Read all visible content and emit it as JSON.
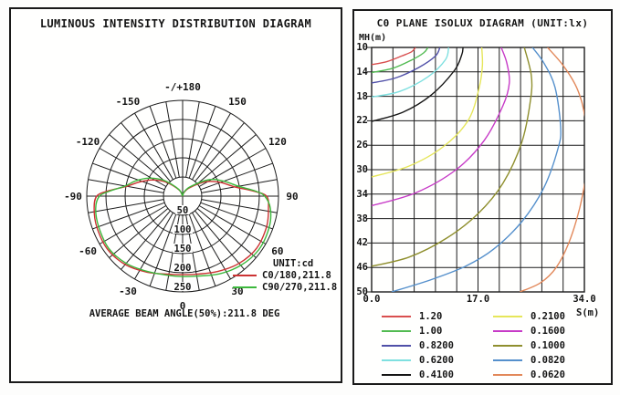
{
  "left_panel": {
    "title": "LUMINOUS INTENSITY DISTRIBUTION DIAGRAM",
    "legend_unit": "UNIT:cd",
    "footer": "AVERAGE BEAM ANGLE(50%):211.8 DEG"
  },
  "right_panel": {
    "title": "C0 PLANE ISOLUX DIAGRAM (UNIT:lx)",
    "y_axis_label": "MH(m)",
    "x_axis_label": "S(m)"
  },
  "chart_data": [
    {
      "type": "line",
      "variant": "polar-intensity",
      "title": "LUMINOUS INTENSITY DISTRIBUTION DIAGRAM",
      "unit": "cd",
      "beam_angle_deg": 211.8,
      "radial_ticks": [
        50,
        100,
        150,
        200,
        250
      ],
      "r_max": 250,
      "angle_labels": [
        {
          "text": "-/+180",
          "deg": 180
        },
        {
          "text": "-150",
          "deg": -150
        },
        {
          "text": "150",
          "deg": 150
        },
        {
          "text": "-120",
          "deg": -120
        },
        {
          "text": "120",
          "deg": 120
        },
        {
          "text": "-90",
          "deg": -90
        },
        {
          "text": "90",
          "deg": 90
        },
        {
          "text": "-60",
          "deg": -60
        },
        {
          "text": "60",
          "deg": 60
        },
        {
          "text": "-30",
          "deg": -30
        },
        {
          "text": "30",
          "deg": 30
        },
        {
          "text": "0",
          "deg": 0
        }
      ],
      "series": [
        {
          "name": "C0/180,211.8",
          "color": "#cc3333",
          "points": [
            [
              -180,
              0
            ],
            [
              -150,
              19
            ],
            [
              -130,
              57
            ],
            [
              -118,
              90
            ],
            [
              -108,
              119
            ],
            [
              -100,
              148
            ],
            [
              -94,
              195
            ],
            [
              -90,
              224
            ],
            [
              -82,
              233
            ],
            [
              -70,
              238
            ],
            [
              -55,
              240
            ],
            [
              -40,
              233
            ],
            [
              -25,
              219
            ],
            [
              -10,
              207
            ],
            [
              0,
              205
            ],
            [
              10,
              207
            ],
            [
              25,
              217
            ],
            [
              40,
              229
            ],
            [
              55,
              236
            ],
            [
              70,
              233
            ],
            [
              82,
              226
            ],
            [
              90,
              219
            ],
            [
              94,
              186
            ],
            [
              100,
              138
            ],
            [
              110,
              105
            ],
            [
              122,
              71
            ],
            [
              140,
              29
            ],
            [
              160,
              10
            ],
            [
              180,
              0
            ]
          ]
        },
        {
          "name": "C90/270,211.8",
          "color": "#3cb83c",
          "points": [
            [
              -180,
              0
            ],
            [
              -150,
              21
            ],
            [
              -130,
              64
            ],
            [
              -118,
              100
            ],
            [
              -108,
              129
            ],
            [
              -100,
              152
            ],
            [
              -94,
              190
            ],
            [
              -90,
              217
            ],
            [
              -82,
              229
            ],
            [
              -70,
              233
            ],
            [
              -55,
              236
            ],
            [
              -40,
              229
            ],
            [
              -25,
              217
            ],
            [
              -10,
              210
            ],
            [
              0,
              210
            ],
            [
              10,
              212
            ],
            [
              25,
              224
            ],
            [
              40,
              236
            ],
            [
              55,
              243
            ],
            [
              70,
              240
            ],
            [
              82,
              231
            ],
            [
              90,
              214
            ],
            [
              94,
              190
            ],
            [
              100,
              148
            ],
            [
              110,
              114
            ],
            [
              122,
              81
            ],
            [
              140,
              33
            ],
            [
              160,
              12
            ],
            [
              180,
              0
            ]
          ]
        }
      ]
    },
    {
      "type": "line",
      "variant": "isolux",
      "title": "C0 PLANE ISOLUX DIAGRAM (UNIT:lx)",
      "unit": "lx",
      "x": {
        "label": "S(m)",
        "min": 0,
        "max": 34,
        "ticks": [
          0,
          17,
          34
        ],
        "tick_labels": [
          "0.0",
          "17.0",
          "34.0"
        ],
        "gridlines": 10
      },
      "y": {
        "label": "MH(m)",
        "min": 10,
        "max": 50,
        "tick_labels": [
          "10",
          "14",
          "18",
          "22",
          "26",
          "30",
          "34",
          "38",
          "42",
          "46",
          "50"
        ],
        "gridlines": 10
      },
      "series": [
        {
          "label": "1.20",
          "color": "#d94f4f",
          "segments": [
            [
              [
                0,
                12.8
              ],
              [
                2.5,
                12.3
              ],
              [
                4.8,
                11.4
              ],
              [
                6.4,
                10.7
              ],
              [
                7.0,
                10
              ]
            ]
          ]
        },
        {
          "label": "1.00",
          "color": "#52bb52",
          "segments": [
            [
              [
                0,
                14.1
              ],
              [
                3.4,
                13.4
              ],
              [
                6.3,
                12.1
              ],
              [
                8.3,
                10.9
              ],
              [
                9.0,
                10
              ]
            ]
          ]
        },
        {
          "label": "0.8200",
          "color": "#5050a8",
          "segments": [
            [
              [
                0,
                15.8
              ],
              [
                3.8,
                15.0
              ],
              [
                7.5,
                13.3
              ],
              [
                10.2,
                11.4
              ],
              [
                10.9,
                10
              ]
            ]
          ]
        },
        {
          "label": "0.6200",
          "color": "#7fe0e0",
          "segments": [
            [
              [
                0,
                18.1
              ],
              [
                4.5,
                17.2
              ],
              [
                9.0,
                14.8
              ],
              [
                11.8,
                12.0
              ],
              [
                12.3,
                10
              ]
            ]
          ]
        },
        {
          "label": "0.4100",
          "color": "#151515",
          "segments": [
            [
              [
                0,
                22.1
              ],
              [
                5.0,
                20.6
              ],
              [
                9.5,
                17.8
              ],
              [
                13.2,
                13.8
              ],
              [
                14.4,
                11.2
              ],
              [
                14.6,
                10
              ]
            ]
          ]
        },
        {
          "label": "0.2100",
          "color": "#e6e65a",
          "segments": [
            [
              [
                0,
                31.2
              ],
              [
                6.0,
                29.4
              ],
              [
                11.5,
                26.2
              ],
              [
                15.5,
                21.8
              ],
              [
                17.2,
                16.5
              ],
              [
                17.7,
                13.0
              ],
              [
                17.6,
                10
              ]
            ]
          ]
        },
        {
          "label": "0.1600",
          "color": "#c73bc7",
          "segments": [
            [
              [
                0,
                35.9
              ],
              [
                7.0,
                33.8
              ],
              [
                13.5,
                30.0
              ],
              [
                18.0,
                25.2
              ],
              [
                21.0,
                19.5
              ],
              [
                22.0,
                15.8
              ],
              [
                21.6,
                12.5
              ],
              [
                20.7,
                10
              ]
            ]
          ]
        },
        {
          "label": "0.1000",
          "color": "#8f8f2e",
          "segments": [
            [
              [
                0,
                45.8
              ],
              [
                6.0,
                44.3
              ],
              [
                12.0,
                41.2
              ],
              [
                17.0,
                37.2
              ],
              [
                21.0,
                32.2
              ],
              [
                24.0,
                25.5
              ],
              [
                25.4,
                18.5
              ],
              [
                25.5,
                14.5
              ],
              [
                24.4,
                10
              ]
            ]
          ]
        },
        {
          "label": "0.0820",
          "color": "#5590cc",
          "segments": [
            [
              [
                3.2,
                50
              ],
              [
                9.5,
                48.0
              ],
              [
                15.0,
                45.8
              ],
              [
                19.5,
                43.0
              ],
              [
                24.0,
                38.5
              ],
              [
                27.5,
                33.0
              ],
              [
                29.8,
                26.5
              ],
              [
                30.2,
                23.0
              ],
              [
                29.3,
                16.5
              ],
              [
                27.5,
                12.5
              ],
              [
                25.7,
                10
              ]
            ]
          ]
        },
        {
          "label": "0.0620",
          "color": "#e2885a",
          "segments": [
            [
              [
                28.1,
                10
              ],
              [
                30.5,
                12.8
              ],
              [
                32.5,
                16.0
              ],
              [
                33.6,
                19.0
              ],
              [
                34.4,
                23.0
              ]
            ],
            [
              [
                34.4,
                30.5
              ],
              [
                33.2,
                36.5
              ],
              [
                31.5,
                42.0
              ],
              [
                29.5,
                46.0
              ],
              [
                27.0,
                48.5
              ],
              [
                23.7,
                50
              ]
            ]
          ]
        }
      ]
    }
  ]
}
